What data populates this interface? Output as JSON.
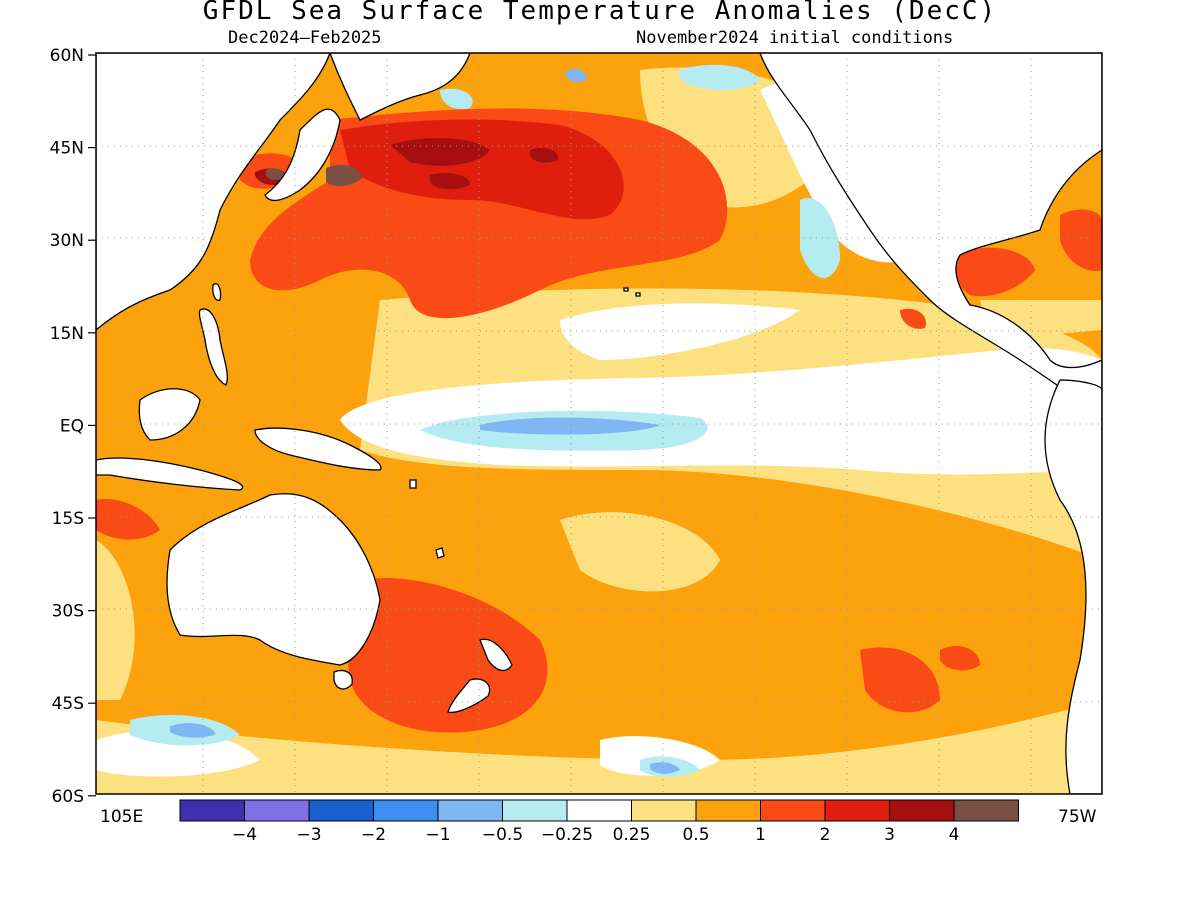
{
  "title": "GFDL Sea Surface Temperature Anomalies (DecC)",
  "subtitle_left": "Dec2024–Feb2025",
  "subtitle_right": "November2024 initial conditions",
  "lat_labels": [
    "60N",
    "45N",
    "30N",
    "15N",
    "EQ",
    "15S",
    "30S",
    "45S",
    "60S"
  ],
  "lon_labels": {
    "left": "105E",
    "right": "75W"
  },
  "colorbar": {
    "colors": [
      "#3f2fb0",
      "#8070e8",
      "#1a5fd0",
      "#3c8ef0",
      "#7fb6f4",
      "#b4ecf2",
      "#ffffff",
      "#fde181",
      "#fba20d",
      "#fa4a15",
      "#e01e0e",
      "#a50f0f",
      "#7a5045"
    ],
    "labels": [
      "−4",
      "−3",
      "−2",
      "−1",
      "−0.5",
      "−0.25",
      "0.25",
      "0.5",
      "1",
      "2",
      "3",
      "4"
    ]
  }
}
